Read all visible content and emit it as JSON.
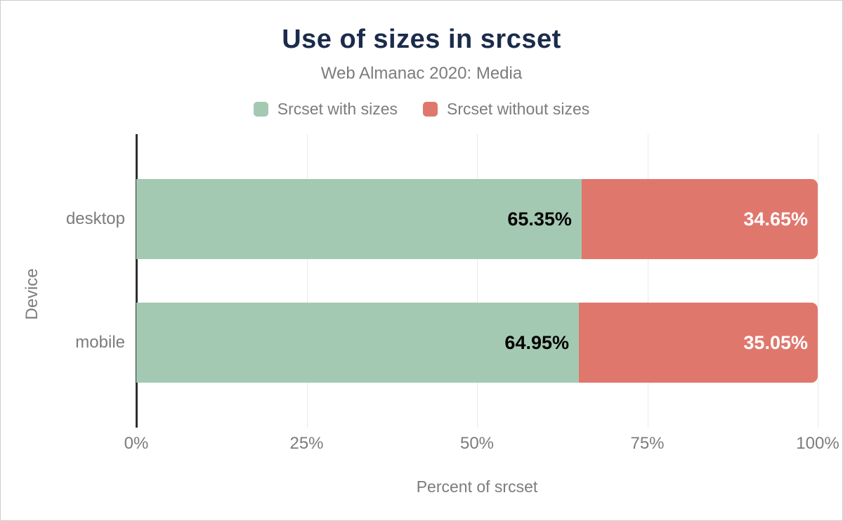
{
  "chart_data": {
    "type": "bar",
    "orientation": "horizontal",
    "stacked": true,
    "title": "Use of sizes in srcset",
    "subtitle": "Web Almanac 2020: Media",
    "categories": [
      "desktop",
      "mobile"
    ],
    "series": [
      {
        "name": "Srcset with sizes",
        "color": "#a4c9b2",
        "label_color": "#000000",
        "values": [
          65.35,
          64.95
        ]
      },
      {
        "name": "Srcset without sizes",
        "color": "#e0776d",
        "label_color": "#ffffff",
        "values": [
          34.65,
          35.05
        ]
      }
    ],
    "xlabel": "Percent of srcset",
    "ylabel": "Device",
    "xlim": [
      0,
      100
    ],
    "x_ticks": [
      "0%",
      "25%",
      "50%",
      "75%",
      "100%"
    ],
    "grid": "vertical",
    "legend_position": "top"
  },
  "colors": {
    "title": "#1b2b4b",
    "muted_text": "#7c7c7c",
    "axis_line": "#2e2e2e",
    "gridline": "#e9e9e9",
    "background": "#ffffff",
    "frame_border": "#cccccc"
  }
}
